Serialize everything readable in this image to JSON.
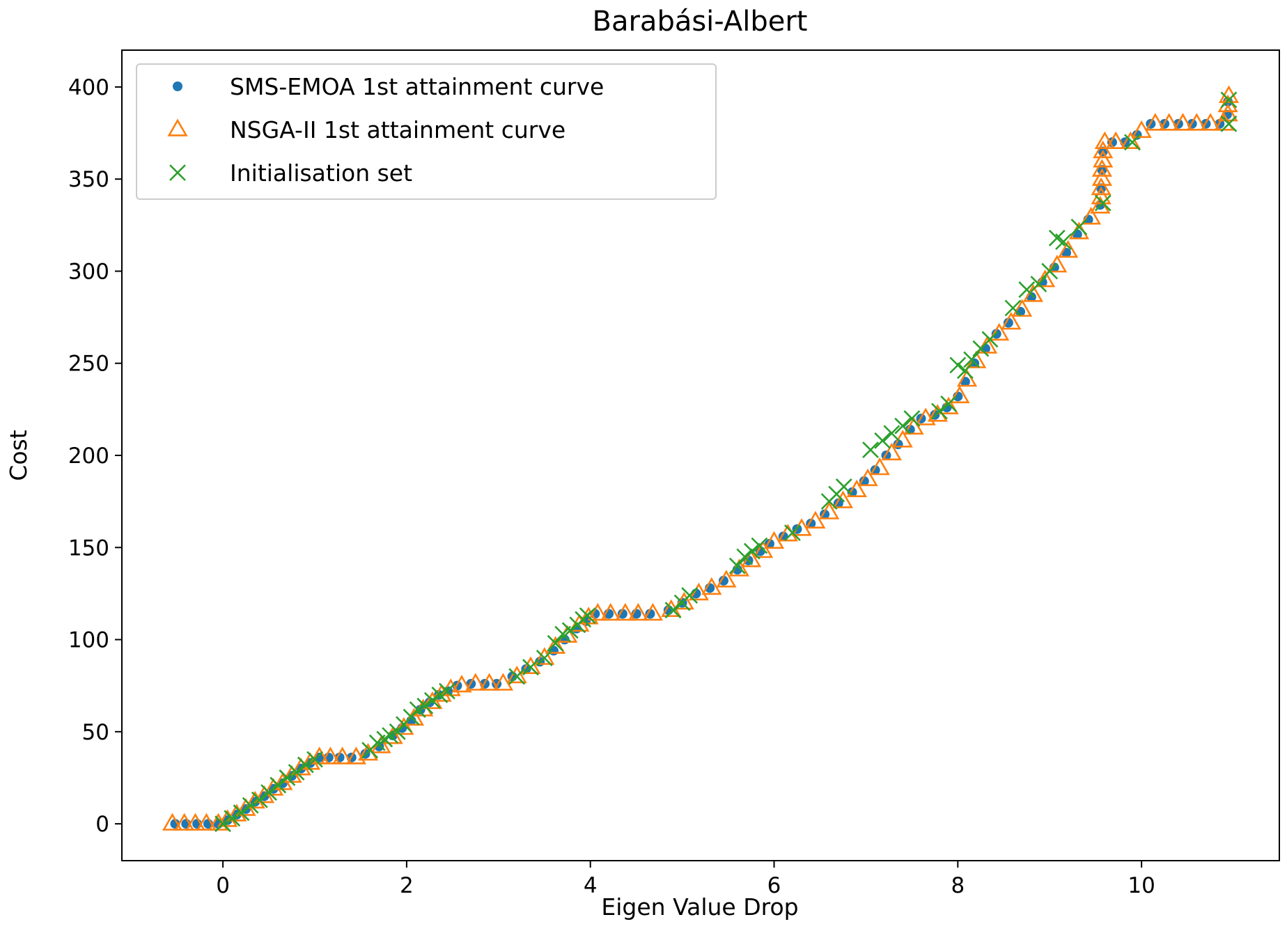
{
  "chart_data": {
    "type": "scatter",
    "title": "Barabási-Albert",
    "xlabel": "Eigen Value Drop",
    "ylabel": "Cost",
    "xlim": [
      -1.1,
      11.5
    ],
    "ylim": [
      -20,
      420
    ],
    "xticks": [
      0,
      2,
      4,
      6,
      8,
      10
    ],
    "yticks": [
      0,
      50,
      100,
      150,
      200,
      250,
      300,
      350,
      400
    ],
    "xtick_labels": [
      "0",
      "2",
      "4",
      "6",
      "8",
      "10"
    ],
    "ytick_labels": [
      "0",
      "50",
      "100",
      "150",
      "200",
      "250",
      "300",
      "350",
      "400"
    ],
    "grid": false,
    "legend_position": "top-left",
    "series": [
      {
        "name": "SMS-EMOA 1st attainment curve",
        "marker": "dot",
        "color": "#1f77b4",
        "points": [
          [
            -0.52,
            0
          ],
          [
            -0.4,
            0
          ],
          [
            -0.28,
            0
          ],
          [
            -0.16,
            0
          ],
          [
            -0.05,
            0
          ],
          [
            0.05,
            2
          ],
          [
            0.15,
            5
          ],
          [
            0.25,
            8
          ],
          [
            0.35,
            12
          ],
          [
            0.45,
            15
          ],
          [
            0.55,
            19
          ],
          [
            0.65,
            22
          ],
          [
            0.75,
            26
          ],
          [
            0.85,
            30
          ],
          [
            0.95,
            33
          ],
          [
            1.05,
            36
          ],
          [
            1.15,
            36
          ],
          [
            1.27,
            36
          ],
          [
            1.4,
            36
          ],
          [
            1.55,
            38
          ],
          [
            1.7,
            42
          ],
          [
            1.85,
            48
          ],
          [
            1.95,
            52
          ],
          [
            2.05,
            56
          ],
          [
            2.15,
            62
          ],
          [
            2.25,
            66
          ],
          [
            2.35,
            70
          ],
          [
            2.45,
            72
          ],
          [
            2.55,
            75
          ],
          [
            2.7,
            76
          ],
          [
            2.85,
            76
          ],
          [
            2.98,
            76
          ],
          [
            3.15,
            80
          ],
          [
            3.3,
            84
          ],
          [
            3.45,
            88
          ],
          [
            3.6,
            94
          ],
          [
            3.72,
            100
          ],
          [
            3.85,
            106
          ],
          [
            3.95,
            110
          ],
          [
            4.05,
            114
          ],
          [
            4.2,
            114
          ],
          [
            4.35,
            114
          ],
          [
            4.5,
            114
          ],
          [
            4.65,
            114
          ],
          [
            4.85,
            116
          ],
          [
            5.0,
            120
          ],
          [
            5.15,
            125
          ],
          [
            5.3,
            128
          ],
          [
            5.45,
            132
          ],
          [
            5.6,
            138
          ],
          [
            5.72,
            143
          ],
          [
            5.85,
            148
          ],
          [
            5.95,
            152
          ],
          [
            6.1,
            156
          ],
          [
            6.25,
            160
          ],
          [
            6.4,
            163
          ],
          [
            6.55,
            168
          ],
          [
            6.7,
            174
          ],
          [
            6.85,
            180
          ],
          [
            6.98,
            186
          ],
          [
            7.1,
            192
          ],
          [
            7.22,
            200
          ],
          [
            7.35,
            206
          ],
          [
            7.48,
            214
          ],
          [
            7.6,
            220
          ],
          [
            7.75,
            222
          ],
          [
            7.88,
            226
          ],
          [
            8.0,
            232
          ],
          [
            8.08,
            240
          ],
          [
            8.18,
            250
          ],
          [
            8.3,
            258
          ],
          [
            8.42,
            266
          ],
          [
            8.55,
            272
          ],
          [
            8.68,
            278
          ],
          [
            8.8,
            286
          ],
          [
            8.92,
            294
          ],
          [
            9.05,
            302
          ],
          [
            9.18,
            310
          ],
          [
            9.3,
            320
          ],
          [
            9.42,
            328
          ],
          [
            9.55,
            336
          ],
          [
            9.56,
            345
          ],
          [
            9.57,
            355
          ],
          [
            9.58,
            365
          ],
          [
            9.68,
            370
          ],
          [
            9.82,
            370
          ],
          [
            9.95,
            374
          ],
          [
            10.1,
            380
          ],
          [
            10.25,
            380
          ],
          [
            10.4,
            380
          ],
          [
            10.55,
            380
          ],
          [
            10.7,
            380
          ],
          [
            10.85,
            380
          ],
          [
            10.93,
            385
          ],
          [
            10.94,
            392
          ]
        ]
      },
      {
        "name": "NSGA-II 1st attainment curve",
        "marker": "triangle-open",
        "color": "#ff7f0e",
        "points": [
          [
            -0.55,
            0
          ],
          [
            -0.42,
            0
          ],
          [
            -0.3,
            0
          ],
          [
            -0.18,
            0
          ],
          [
            -0.05,
            0
          ],
          [
            0.05,
            2
          ],
          [
            0.15,
            5
          ],
          [
            0.25,
            8
          ],
          [
            0.35,
            12
          ],
          [
            0.45,
            15
          ],
          [
            0.55,
            19
          ],
          [
            0.65,
            22
          ],
          [
            0.75,
            26
          ],
          [
            0.85,
            30
          ],
          [
            0.95,
            33
          ],
          [
            1.05,
            36
          ],
          [
            1.17,
            36
          ],
          [
            1.3,
            36
          ],
          [
            1.45,
            36
          ],
          [
            1.58,
            38
          ],
          [
            1.72,
            42
          ],
          [
            1.85,
            47
          ],
          [
            1.97,
            52
          ],
          [
            2.08,
            57
          ],
          [
            2.18,
            62
          ],
          [
            2.28,
            66
          ],
          [
            2.38,
            70
          ],
          [
            2.48,
            73
          ],
          [
            2.6,
            75
          ],
          [
            2.75,
            76
          ],
          [
            2.9,
            76
          ],
          [
            3.05,
            76
          ],
          [
            3.2,
            80
          ],
          [
            3.35,
            85
          ],
          [
            3.5,
            90
          ],
          [
            3.62,
            96
          ],
          [
            3.75,
            102
          ],
          [
            3.88,
            108
          ],
          [
            3.98,
            112
          ],
          [
            4.08,
            114
          ],
          [
            4.22,
            114
          ],
          [
            4.38,
            114
          ],
          [
            4.52,
            114
          ],
          [
            4.68,
            114
          ],
          [
            4.88,
            116
          ],
          [
            5.02,
            120
          ],
          [
            5.18,
            125
          ],
          [
            5.32,
            128
          ],
          [
            5.48,
            132
          ],
          [
            5.62,
            138
          ],
          [
            5.75,
            143
          ],
          [
            5.88,
            148
          ],
          [
            6.0,
            153
          ],
          [
            6.15,
            157
          ],
          [
            6.3,
            160
          ],
          [
            6.45,
            164
          ],
          [
            6.6,
            169
          ],
          [
            6.75,
            175
          ],
          [
            6.9,
            181
          ],
          [
            7.02,
            187
          ],
          [
            7.15,
            193
          ],
          [
            7.28,
            201
          ],
          [
            7.4,
            208
          ],
          [
            7.52,
            215
          ],
          [
            7.65,
            220
          ],
          [
            7.78,
            222
          ],
          [
            7.9,
            226
          ],
          [
            8.02,
            232
          ],
          [
            8.1,
            241
          ],
          [
            8.2,
            251
          ],
          [
            8.32,
            259
          ],
          [
            8.45,
            266
          ],
          [
            8.58,
            272
          ],
          [
            8.7,
            279
          ],
          [
            8.82,
            287
          ],
          [
            8.95,
            295
          ],
          [
            9.08,
            303
          ],
          [
            9.2,
            311
          ],
          [
            9.32,
            321
          ],
          [
            9.45,
            329
          ],
          [
            9.55,
            335
          ],
          [
            9.56,
            340
          ],
          [
            9.56,
            345
          ],
          [
            9.57,
            350
          ],
          [
            9.57,
            355
          ],
          [
            9.58,
            360
          ],
          [
            9.58,
            365
          ],
          [
            9.6,
            370
          ],
          [
            9.72,
            370
          ],
          [
            9.88,
            370
          ],
          [
            10.0,
            376
          ],
          [
            10.15,
            380
          ],
          [
            10.3,
            380
          ],
          [
            10.45,
            380
          ],
          [
            10.6,
            380
          ],
          [
            10.75,
            380
          ],
          [
            10.9,
            380
          ],
          [
            10.94,
            385
          ],
          [
            10.94,
            390
          ],
          [
            10.95,
            395
          ]
        ]
      },
      {
        "name": "Initialisation set",
        "marker": "x",
        "color": "#2ca02c",
        "points": [
          [
            0.0,
            0
          ],
          [
            0.1,
            3
          ],
          [
            0.2,
            6
          ],
          [
            0.3,
            10
          ],
          [
            0.4,
            13
          ],
          [
            0.5,
            17
          ],
          [
            0.6,
            21
          ],
          [
            0.7,
            25
          ],
          [
            0.8,
            28
          ],
          [
            0.9,
            32
          ],
          [
            1.0,
            35
          ],
          [
            1.6,
            40
          ],
          [
            1.68,
            44
          ],
          [
            1.76,
            46
          ],
          [
            1.82,
            48
          ],
          [
            1.9,
            50
          ],
          [
            1.97,
            54
          ],
          [
            2.05,
            58
          ],
          [
            2.12,
            62
          ],
          [
            2.2,
            64
          ],
          [
            2.28,
            67
          ],
          [
            2.36,
            70
          ],
          [
            2.44,
            72
          ],
          [
            3.2,
            80
          ],
          [
            3.35,
            85
          ],
          [
            3.5,
            90
          ],
          [
            3.62,
            98
          ],
          [
            3.7,
            103
          ],
          [
            3.78,
            105
          ],
          [
            3.86,
            108
          ],
          [
            3.92,
            111
          ],
          [
            3.97,
            113
          ],
          [
            4.9,
            116
          ],
          [
            5.0,
            120
          ],
          [
            5.08,
            124
          ],
          [
            5.6,
            140
          ],
          [
            5.68,
            145
          ],
          [
            5.76,
            148
          ],
          [
            5.84,
            151
          ],
          [
            6.2,
            158
          ],
          [
            6.6,
            175
          ],
          [
            6.68,
            179
          ],
          [
            6.76,
            183
          ],
          [
            7.05,
            203
          ],
          [
            7.18,
            208
          ],
          [
            7.28,
            212
          ],
          [
            7.4,
            216
          ],
          [
            7.5,
            220
          ],
          [
            7.8,
            224
          ],
          [
            7.9,
            228
          ],
          [
            8.0,
            249
          ],
          [
            8.08,
            246
          ],
          [
            8.15,
            252
          ],
          [
            8.25,
            258
          ],
          [
            8.35,
            263
          ],
          [
            8.6,
            280
          ],
          [
            8.75,
            290
          ],
          [
            8.88,
            293
          ],
          [
            9.0,
            300
          ],
          [
            9.08,
            318
          ],
          [
            9.15,
            316
          ],
          [
            9.32,
            324
          ],
          [
            9.58,
            337
          ],
          [
            9.9,
            370
          ],
          [
            10.95,
            380
          ],
          [
            10.95,
            393
          ]
        ]
      }
    ]
  }
}
